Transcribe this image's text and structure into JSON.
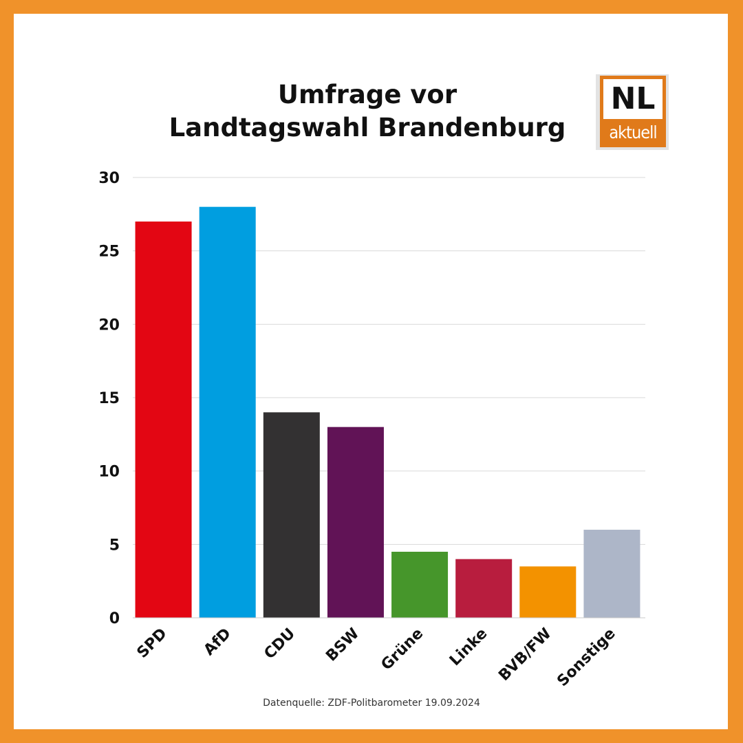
{
  "title": {
    "line1": "Umfrage vor",
    "line2": "Landtagswahl Brandenburg"
  },
  "logo": {
    "top": "NL",
    "bottom": "aktuell",
    "color": "#e07a1a"
  },
  "source": "Datenquelle: ZDF-Politbarometer 19.09.2024",
  "chart_data": {
    "type": "bar",
    "title": "Umfrage vor Landtagswahl Brandenburg",
    "xlabel": "",
    "ylabel": "",
    "categories": [
      "SPD",
      "AfD",
      "CDU",
      "BSW",
      "Grüne",
      "Linke",
      "BVB/FW",
      "Sonstige"
    ],
    "values": [
      27,
      28,
      14,
      13,
      4.5,
      4,
      3.5,
      6
    ],
    "colors": [
      "#e30613",
      "#009ee0",
      "#333132",
      "#611356",
      "#46962b",
      "#b81d3e",
      "#f39200",
      "#adb6c8"
    ],
    "ylim": [
      0,
      30
    ],
    "yticks": [
      0,
      5,
      10,
      15,
      20,
      25,
      30
    ],
    "grid": true,
    "legend": "none"
  }
}
